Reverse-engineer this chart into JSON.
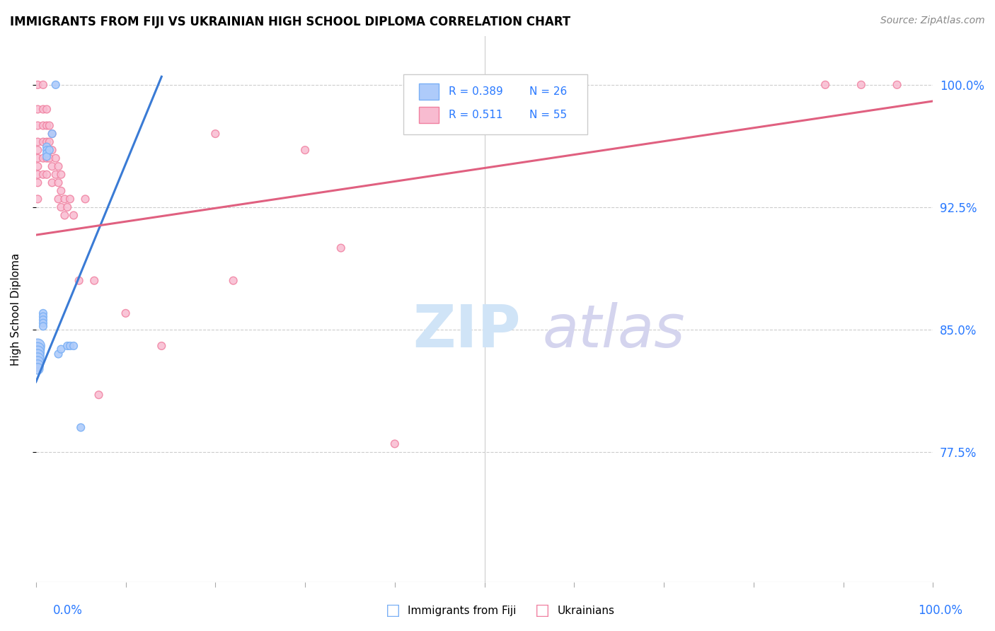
{
  "title": "IMMIGRANTS FROM FIJI VS UKRAINIAN HIGH SCHOOL DIPLOMA CORRELATION CHART",
  "source": "Source: ZipAtlas.com",
  "ylabel": "High School Diploma",
  "y_ticks_labels": [
    "100.0%",
    "92.5%",
    "85.0%",
    "77.5%"
  ],
  "y_tick_vals": [
    1.0,
    0.925,
    0.85,
    0.775
  ],
  "x_lim": [
    0.0,
    1.0
  ],
  "y_lim": [
    0.695,
    1.03
  ],
  "fiji_color_edge": "#7ab0f5",
  "fiji_color_fill": "#aecbfa",
  "ukrainian_color_edge": "#f080a0",
  "ukrainian_color_fill": "#f8bbd0",
  "trend_fiji_color": "#3a7bd5",
  "trend_ukrainian_color": "#e06080",
  "legend_R_fiji": "0.389",
  "legend_N_fiji": "26",
  "legend_R_ukr": "0.511",
  "legend_N_ukr": "55",
  "fiji_x": [
    0.002,
    0.002,
    0.002,
    0.002,
    0.002,
    0.002,
    0.002,
    0.002,
    0.008,
    0.008,
    0.008,
    0.008,
    0.008,
    0.012,
    0.012,
    0.012,
    0.012,
    0.015,
    0.018,
    0.022,
    0.025,
    0.028,
    0.035,
    0.038,
    0.042,
    0.05
  ],
  "fiji_y": [
    0.84,
    0.838,
    0.836,
    0.834,
    0.832,
    0.83,
    0.828,
    0.826,
    0.86,
    0.858,
    0.856,
    0.854,
    0.852,
    0.962,
    0.96,
    0.958,
    0.956,
    0.96,
    0.97,
    1.0,
    0.835,
    0.838,
    0.84,
    0.84,
    0.84,
    0.79
  ],
  "fiji_sizes": [
    200,
    180,
    170,
    160,
    150,
    140,
    130,
    120,
    60,
    60,
    60,
    60,
    60,
    60,
    60,
    60,
    60,
    60,
    60,
    60,
    60,
    60,
    60,
    60,
    60,
    60
  ],
  "ukr_x": [
    0.002,
    0.002,
    0.002,
    0.002,
    0.002,
    0.002,
    0.002,
    0.002,
    0.002,
    0.002,
    0.008,
    0.008,
    0.008,
    0.008,
    0.008,
    0.008,
    0.012,
    0.012,
    0.012,
    0.012,
    0.012,
    0.015,
    0.015,
    0.015,
    0.018,
    0.018,
    0.018,
    0.018,
    0.022,
    0.022,
    0.025,
    0.025,
    0.025,
    0.028,
    0.028,
    0.028,
    0.032,
    0.032,
    0.035,
    0.038,
    0.042,
    0.048,
    0.055,
    0.065,
    0.07,
    0.1,
    0.14,
    0.2,
    0.22,
    0.3,
    0.34,
    0.4,
    0.88,
    0.92,
    0.96
  ],
  "ukr_y": [
    1.0,
    0.985,
    0.975,
    0.965,
    0.96,
    0.955,
    0.95,
    0.945,
    0.94,
    0.93,
    1.0,
    0.985,
    0.975,
    0.965,
    0.955,
    0.945,
    0.985,
    0.975,
    0.965,
    0.955,
    0.945,
    0.975,
    0.965,
    0.955,
    0.97,
    0.96,
    0.95,
    0.94,
    0.955,
    0.945,
    0.95,
    0.94,
    0.93,
    0.945,
    0.935,
    0.925,
    0.93,
    0.92,
    0.925,
    0.93,
    0.92,
    0.88,
    0.93,
    0.88,
    0.81,
    0.86,
    0.84,
    0.97,
    0.88,
    0.96,
    0.9,
    0.78,
    1.0,
    1.0,
    1.0
  ],
  "ukr_sizes": [
    60,
    60,
    60,
    60,
    60,
    60,
    60,
    60,
    60,
    60,
    60,
    60,
    60,
    60,
    60,
    60,
    60,
    60,
    60,
    60,
    60,
    60,
    60,
    60,
    60,
    60,
    60,
    60,
    60,
    60,
    60,
    60,
    60,
    60,
    60,
    60,
    60,
    60,
    60,
    60,
    60,
    60,
    60,
    60,
    60,
    60,
    60,
    60,
    60,
    60,
    60,
    60,
    60,
    60,
    60
  ],
  "trend_fiji_x0": 0.0,
  "trend_fiji_x1": 0.14,
  "trend_ukr_x0": 0.0,
  "trend_ukr_x1": 1.0
}
